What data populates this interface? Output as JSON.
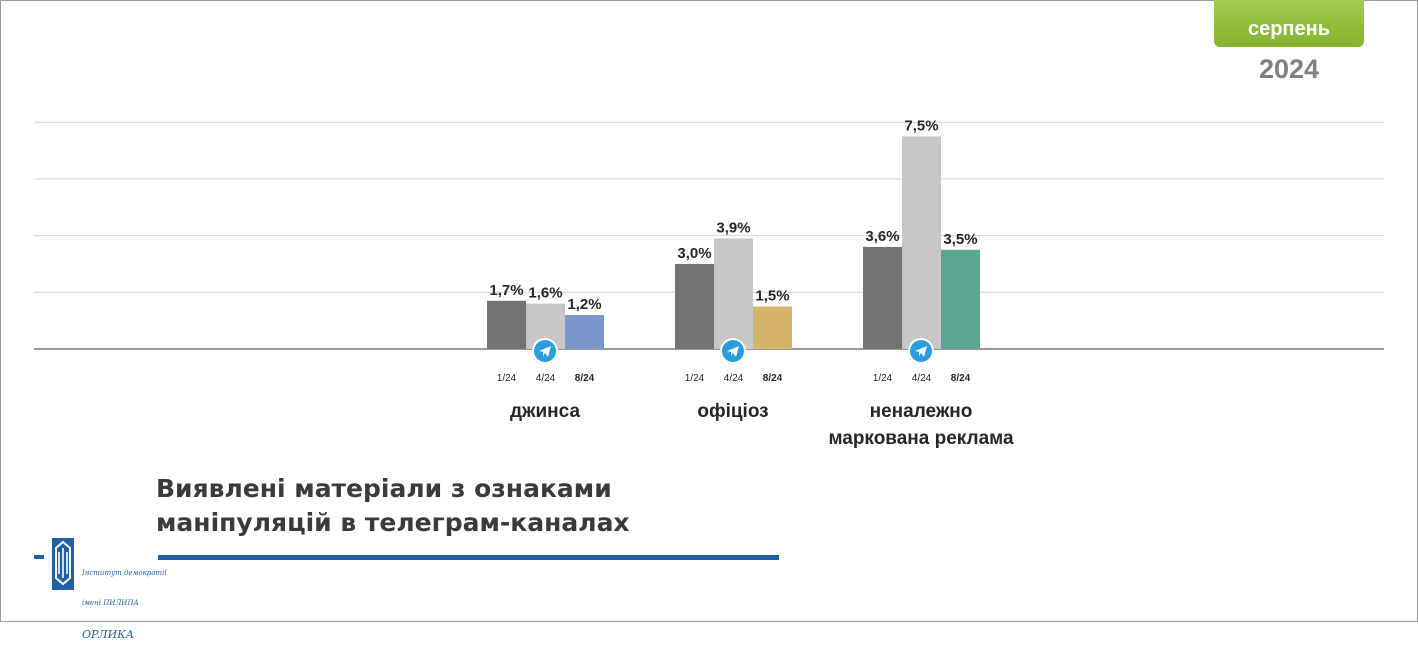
{
  "period": {
    "month": "серпень",
    "year": "2024"
  },
  "title": {
    "line1": "Виявлені матеріали з ознаками",
    "line2": "маніпуляцій в телеграм-каналах"
  },
  "logo": {
    "lines": [
      "Інститут демократії",
      "імені ПИЛИПА",
      "ОРЛИКА"
    ]
  },
  "icons": {
    "category_marker": "telegram-icon"
  },
  "chart_data": {
    "type": "bar",
    "unit": "%",
    "ylim": [
      0,
      8
    ],
    "grid": true,
    "categories": [
      "джинса",
      "офіціоз",
      "неналежно маркована реклама"
    ],
    "category_label_lines": [
      [
        "джинса"
      ],
      [
        "офіціоз"
      ],
      [
        "неналежно",
        "маркована реклама"
      ]
    ],
    "series": [
      {
        "name": "1/24",
        "values": [
          1.7,
          3.0,
          3.6
        ],
        "labels": [
          "1,7%",
          "3,0%",
          "3,6%"
        ]
      },
      {
        "name": "4/24",
        "values": [
          1.6,
          3.9,
          7.5
        ],
        "labels": [
          "1,6%",
          "3,9%",
          "7,5%"
        ]
      },
      {
        "name": "8/24",
        "values": [
          1.2,
          1.5,
          3.5
        ],
        "labels": [
          "1,2%",
          "1,5%",
          "3,5%"
        ]
      }
    ],
    "colors": {
      "series_1": "#727272",
      "series_2": "#c6c7c6",
      "series_3_by_category": [
        "#7b97cb",
        "#d6b56a",
        "#5ba593"
      ],
      "telegram": "#2a9de0"
    }
  }
}
